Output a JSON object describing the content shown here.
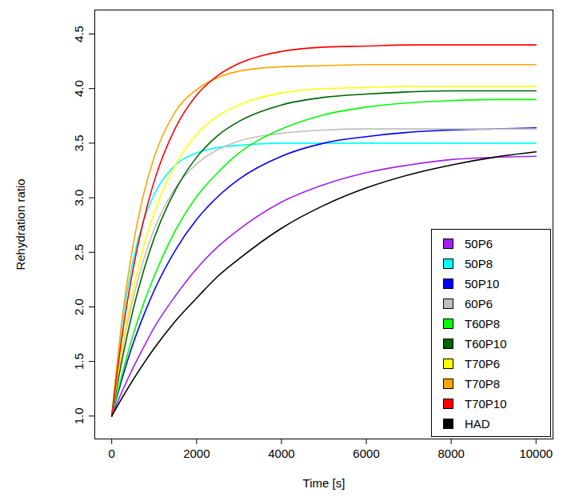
{
  "chart_data": {
    "type": "line",
    "x_label": "Time [s]",
    "y_label": "Rehydration ratio",
    "x": [
      0,
      250,
      500,
      750,
      1000,
      1500,
      2000,
      2500,
      3000,
      4000,
      5000,
      6000,
      7000,
      8000,
      9000,
      10000
    ],
    "series": [
      {
        "name": "50P6",
        "color": "#a020f0",
        "values": [
          1.0,
          1.23,
          1.44,
          1.63,
          1.81,
          2.1,
          2.35,
          2.55,
          2.71,
          2.96,
          3.12,
          3.23,
          3.3,
          3.35,
          3.37,
          3.38
        ]
      },
      {
        "name": "50P8",
        "color": "#00ffff",
        "values": [
          1.0,
          1.86,
          2.42,
          2.79,
          3.03,
          3.3,
          3.41,
          3.46,
          3.48,
          3.5,
          3.5,
          3.5,
          3.5,
          3.5,
          3.5,
          3.5
        ]
      },
      {
        "name": "50P10",
        "color": "#0000ff",
        "values": [
          1.0,
          1.35,
          1.66,
          1.92,
          2.15,
          2.52,
          2.8,
          3.01,
          3.17,
          3.38,
          3.5,
          3.56,
          3.6,
          3.62,
          3.63,
          3.64
        ]
      },
      {
        "name": "60P6",
        "color": "#bebebe",
        "values": [
          1.0,
          1.61,
          2.07,
          2.43,
          2.71,
          3.09,
          3.31,
          3.44,
          3.52,
          3.59,
          3.62,
          3.63,
          3.63,
          3.63,
          3.63,
          3.63
        ]
      },
      {
        "name": "T60P8",
        "color": "#00ff00",
        "values": [
          1.0,
          1.39,
          1.74,
          2.03,
          2.28,
          2.7,
          3.01,
          3.23,
          3.41,
          3.63,
          3.76,
          3.83,
          3.87,
          3.89,
          3.9,
          3.9
        ]
      },
      {
        "name": "T60P10",
        "color": "#006400",
        "values": [
          1.0,
          1.53,
          1.97,
          2.33,
          2.63,
          3.07,
          3.37,
          3.57,
          3.7,
          3.85,
          3.92,
          3.95,
          3.97,
          3.98,
          3.98,
          3.98
        ]
      },
      {
        "name": "T70P6",
        "color": "#ffff00",
        "values": [
          1.0,
          1.64,
          2.15,
          2.55,
          2.86,
          3.3,
          3.58,
          3.75,
          3.85,
          3.96,
          4.0,
          4.01,
          4.02,
          4.02,
          4.02,
          4.02
        ]
      },
      {
        "name": "T70P8",
        "color": "#ffa500",
        "values": [
          1.0,
          1.91,
          2.56,
          3.03,
          3.37,
          3.79,
          3.99,
          4.1,
          4.16,
          4.2,
          4.21,
          4.22,
          4.22,
          4.22,
          4.22,
          4.22
        ]
      },
      {
        "name": "T70P10",
        "color": "#ff0000",
        "values": [
          1.0,
          1.75,
          2.34,
          2.79,
          3.15,
          3.64,
          3.94,
          4.12,
          4.23,
          4.34,
          4.38,
          4.39,
          4.4,
          4.4,
          4.4,
          4.4
        ]
      },
      {
        "name": "HAD",
        "color": "#000000",
        "values": [
          1.0,
          1.17,
          1.33,
          1.48,
          1.62,
          1.87,
          2.08,
          2.28,
          2.44,
          2.72,
          2.93,
          3.09,
          3.21,
          3.3,
          3.37,
          3.42
        ]
      }
    ],
    "xlim": [
      -400,
      10400
    ],
    "ylim": [
      0.79,
      4.72
    ],
    "xticks": [
      0,
      2000,
      4000,
      6000,
      8000,
      10000
    ],
    "yticks": [
      {
        "value": 1,
        "label": "1.0"
      },
      1.5,
      {
        "value": 2,
        "label": "2.0"
      },
      2.5,
      {
        "value": 3,
        "label": "3.0"
      },
      3.5,
      {
        "value": 4,
        "label": "4.0"
      },
      4.5
    ],
    "grid": false,
    "legend": "bottomright"
  }
}
